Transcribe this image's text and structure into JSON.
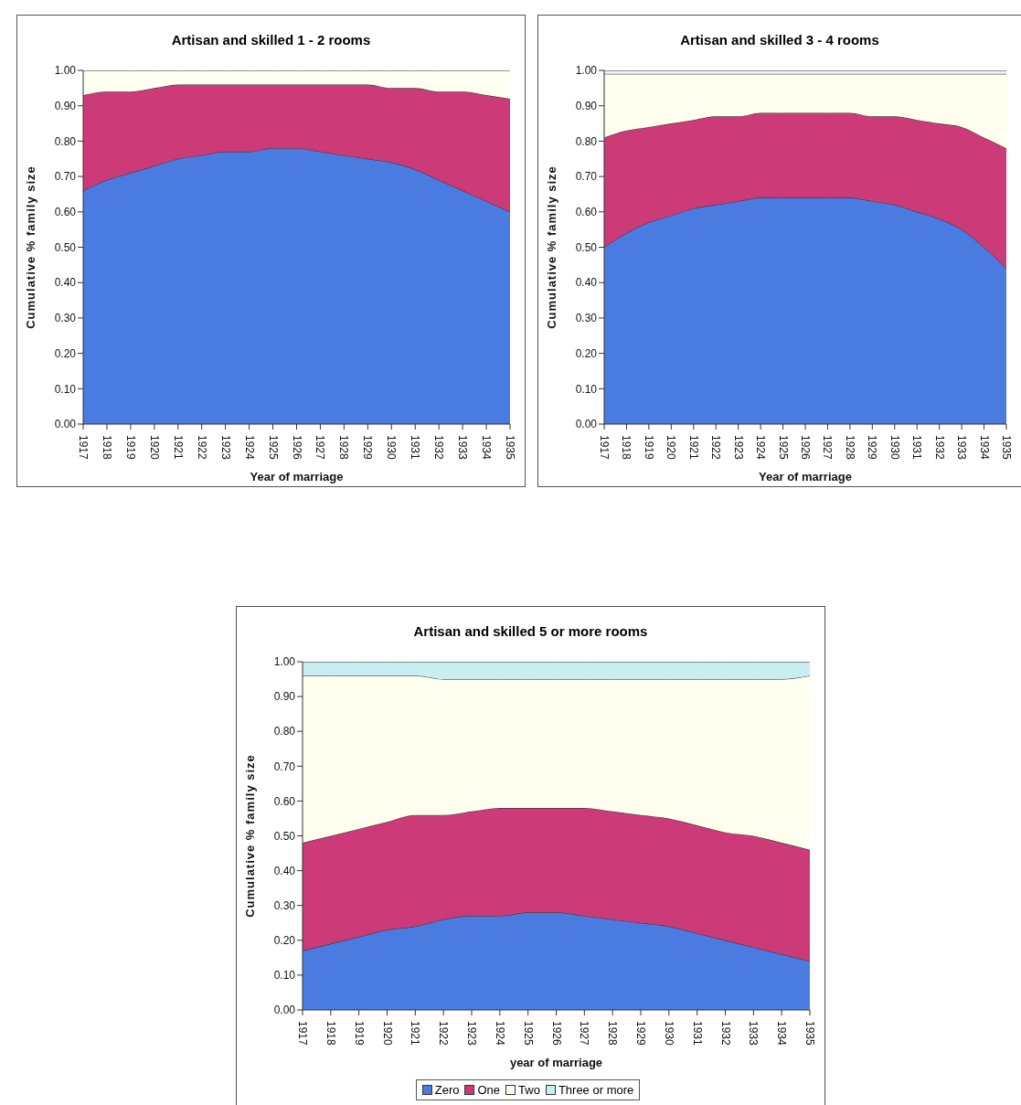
{
  "chart_data": [
    {
      "type": "area",
      "title": "Artisan and skilled 1 - 2 rooms",
      "xlabel": "Year of marriage",
      "ylabel": "Cumulative % family size",
      "stacked": true,
      "legend": false,
      "grid": false,
      "categories": [
        "1917",
        "1918",
        "1919",
        "1920",
        "1921",
        "1922",
        "1923",
        "1924",
        "1925",
        "1926",
        "1927",
        "1928",
        "1929",
        "1930",
        "1931",
        "1932",
        "1933",
        "1934",
        "1935"
      ],
      "ylim": [
        0,
        1
      ],
      "yticks": [
        {
          "value": 0,
          "label": "0.00"
        },
        {
          "value": 0.1,
          "label": "0.10"
        },
        {
          "value": 0.2,
          "label": "0.20"
        },
        {
          "value": 0.3,
          "label": "0.30"
        },
        {
          "value": 0.4,
          "label": "0.40"
        },
        {
          "value": 0.5,
          "label": "0.50"
        },
        {
          "value": 0.6,
          "label": "0.60"
        },
        {
          "value": 0.7,
          "label": "0.70"
        },
        {
          "value": 0.8,
          "label": "0.80"
        },
        {
          "value": 0.9,
          "label": "0.90"
        },
        {
          "value": 1,
          "label": "1.00"
        }
      ],
      "series": [
        {
          "color": "#4a7be0",
          "values": [
            0.66,
            0.69,
            0.71,
            0.73,
            0.75,
            0.76,
            0.77,
            0.77,
            0.78,
            0.78,
            0.77,
            0.76,
            0.75,
            0.74,
            0.72,
            0.69,
            0.66,
            0.63,
            0.6
          ]
        },
        {
          "color": "#cc3a78",
          "values": [
            0.27,
            0.25,
            0.23,
            0.22,
            0.21,
            0.2,
            0.19,
            0.19,
            0.18,
            0.18,
            0.19,
            0.2,
            0.21,
            0.21,
            0.23,
            0.25,
            0.28,
            0.3,
            0.32
          ]
        },
        {
          "color": "#fffff2",
          "values": [
            0.07,
            0.06,
            0.06,
            0.05,
            0.04,
            0.04,
            0.04,
            0.04,
            0.04,
            0.04,
            0.04,
            0.04,
            0.04,
            0.05,
            0.05,
            0.06,
            0.06,
            0.07,
            0.08
          ]
        }
      ]
    },
    {
      "type": "area",
      "title": "Artisan and skilled 3 - 4 rooms",
      "xlabel": "Year of marriage",
      "ylabel": "Cumulative % family size",
      "stacked": true,
      "legend": false,
      "grid": false,
      "categories": [
        "1917",
        "1918",
        "1919",
        "1920",
        "1921",
        "1922",
        "1923",
        "1924",
        "1925",
        "1926",
        "1927",
        "1928",
        "1929",
        "1930",
        "1931",
        "1932",
        "1933",
        "1934",
        "1935"
      ],
      "ylim": [
        0,
        1
      ],
      "yticks": [
        {
          "value": 0,
          "label": "0.00"
        },
        {
          "value": 0.1,
          "label": "0.10"
        },
        {
          "value": 0.2,
          "label": "0.20"
        },
        {
          "value": 0.3,
          "label": "0.30"
        },
        {
          "value": 0.4,
          "label": "0.40"
        },
        {
          "value": 0.5,
          "label": "0.50"
        },
        {
          "value": 0.6,
          "label": "0.60"
        },
        {
          "value": 0.7,
          "label": "0.70"
        },
        {
          "value": 0.8,
          "label": "0.80"
        },
        {
          "value": 0.9,
          "label": "0.90"
        },
        {
          "value": 1,
          "label": "1.00"
        }
      ],
      "series": [
        {
          "color": "#4a7be0",
          "values": [
            0.5,
            0.54,
            0.57,
            0.59,
            0.61,
            0.62,
            0.63,
            0.64,
            0.64,
            0.64,
            0.64,
            0.64,
            0.63,
            0.62,
            0.6,
            0.58,
            0.55,
            0.5,
            0.44
          ]
        },
        {
          "color": "#cc3a78",
          "values": [
            0.31,
            0.29,
            0.27,
            0.26,
            0.25,
            0.25,
            0.24,
            0.24,
            0.24,
            0.24,
            0.24,
            0.24,
            0.24,
            0.25,
            0.26,
            0.27,
            0.29,
            0.31,
            0.34
          ]
        },
        {
          "color": "#fffff0",
          "values": [
            0.18,
            0.16,
            0.15,
            0.14,
            0.13,
            0.12,
            0.12,
            0.11,
            0.11,
            0.11,
            0.11,
            0.11,
            0.12,
            0.12,
            0.13,
            0.14,
            0.15,
            0.18,
            0.21
          ]
        },
        {
          "color": "#f4f4f4",
          "values": [
            0.01,
            0.01,
            0.01,
            0.01,
            0.01,
            0.01,
            0.01,
            0.01,
            0.01,
            0.01,
            0.01,
            0.01,
            0.01,
            0.01,
            0.01,
            0.01,
            0.01,
            0.01,
            0.01
          ]
        }
      ]
    },
    {
      "type": "area",
      "title": "Artisan and skilled 5 or more rooms",
      "xlabel": "year of marriage",
      "ylabel": "Cumulative % family size",
      "stacked": true,
      "legend": "bottom",
      "grid": false,
      "categories": [
        "1917",
        "1918",
        "1919",
        "1920",
        "1921",
        "1922",
        "1923",
        "1924",
        "1925",
        "1926",
        "1927",
        "1928",
        "1929",
        "1930",
        "1931",
        "1932",
        "1933",
        "1934",
        "1935"
      ],
      "ylim": [
        0,
        1
      ],
      "yticks": [
        {
          "value": 0,
          "label": "0.00"
        },
        {
          "value": 0.1,
          "label": "0.10"
        },
        {
          "value": 0.2,
          "label": "0.20"
        },
        {
          "value": 0.3,
          "label": "0.30"
        },
        {
          "value": 0.4,
          "label": "0.40"
        },
        {
          "value": 0.5,
          "label": "0.50"
        },
        {
          "value": 0.6,
          "label": "0.60"
        },
        {
          "value": 0.7,
          "label": "0.70"
        },
        {
          "value": 0.8,
          "label": "0.80"
        },
        {
          "value": 0.9,
          "label": "0.90"
        },
        {
          "value": 1,
          "label": "1.00"
        }
      ],
      "series": [
        {
          "name": "Zero",
          "color": "#4a7be0",
          "values": [
            0.17,
            0.19,
            0.21,
            0.23,
            0.24,
            0.26,
            0.27,
            0.27,
            0.28,
            0.28,
            0.27,
            0.26,
            0.25,
            0.24,
            0.22,
            0.2,
            0.18,
            0.16,
            0.14
          ]
        },
        {
          "name": "One",
          "color": "#cc3a78",
          "values": [
            0.31,
            0.31,
            0.31,
            0.31,
            0.32,
            0.3,
            0.3,
            0.31,
            0.3,
            0.3,
            0.31,
            0.31,
            0.31,
            0.31,
            0.31,
            0.31,
            0.32,
            0.32,
            0.32
          ]
        },
        {
          "name": "Two",
          "color": "#fffff0",
          "values": [
            0.48,
            0.46,
            0.44,
            0.42,
            0.4,
            0.39,
            0.38,
            0.37,
            0.37,
            0.37,
            0.37,
            0.38,
            0.39,
            0.4,
            0.42,
            0.44,
            0.45,
            0.47,
            0.5
          ]
        },
        {
          "name": "Three or more",
          "color": "#c8eef2",
          "values": [
            0.04,
            0.04,
            0.04,
            0.04,
            0.04,
            0.05,
            0.05,
            0.05,
            0.05,
            0.05,
            0.05,
            0.05,
            0.05,
            0.05,
            0.05,
            0.05,
            0.05,
            0.05,
            0.04
          ]
        }
      ]
    }
  ]
}
